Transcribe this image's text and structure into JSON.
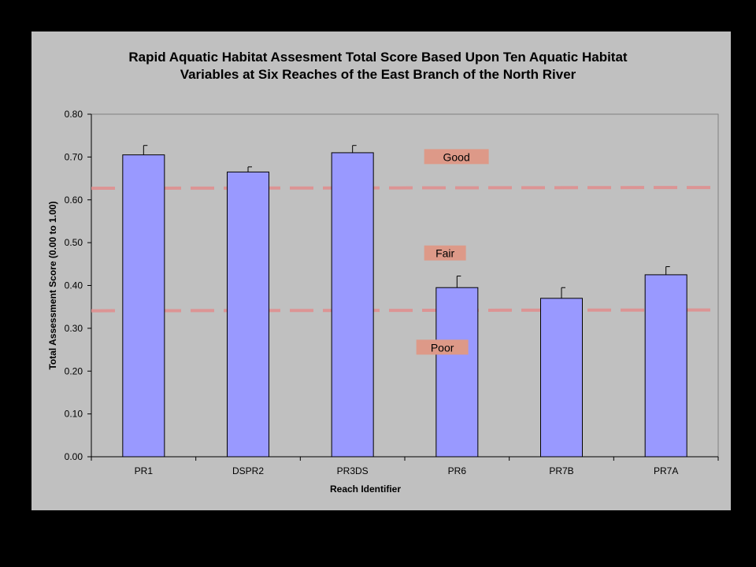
{
  "chart_data": {
    "type": "bar",
    "title": [
      "Rapid Aquatic Habitat Assesment Total Score Based Upon Ten Aquatic Habitat",
      "Variables at Six Reaches of the East Branch of the North River"
    ],
    "xlabel": "Reach Identifier",
    "ylabel": "Total Assessment Score (0.00  to  1.00)",
    "categories": [
      "PR1",
      "DSPR2",
      "PR3DS",
      "PR6",
      "PR7B",
      "PR7A"
    ],
    "values": [
      0.705,
      0.665,
      0.71,
      0.395,
      0.37,
      0.425
    ],
    "error_upper": [
      0.022,
      0.012,
      0.017,
      0.027,
      0.025,
      0.019
    ],
    "ylim": [
      0,
      0.8
    ],
    "yticks": [
      "0.00",
      "0.10",
      "0.20",
      "0.30",
      "0.40",
      "0.50",
      "0.60",
      "0.70",
      "0.80"
    ],
    "grid": false,
    "bar_color": "#9999ff",
    "plot_background": "#c0c0c0",
    "reference_lines": [
      {
        "y": 0.627,
        "color": "#e09090",
        "style": "dashed"
      },
      {
        "y": 0.341,
        "color": "#e09090",
        "style": "dashed"
      }
    ],
    "annotations": [
      {
        "text": "Good",
        "y": 0.7,
        "x_category": "between PR3DS and PR6"
      },
      {
        "text": "Fair",
        "y": 0.475,
        "x_category": "between PR3DS and PR6"
      },
      {
        "text": "Poor",
        "y": 0.255,
        "x_category": "between PR3DS and PR6"
      }
    ],
    "annotation_color": "#dd9988"
  }
}
